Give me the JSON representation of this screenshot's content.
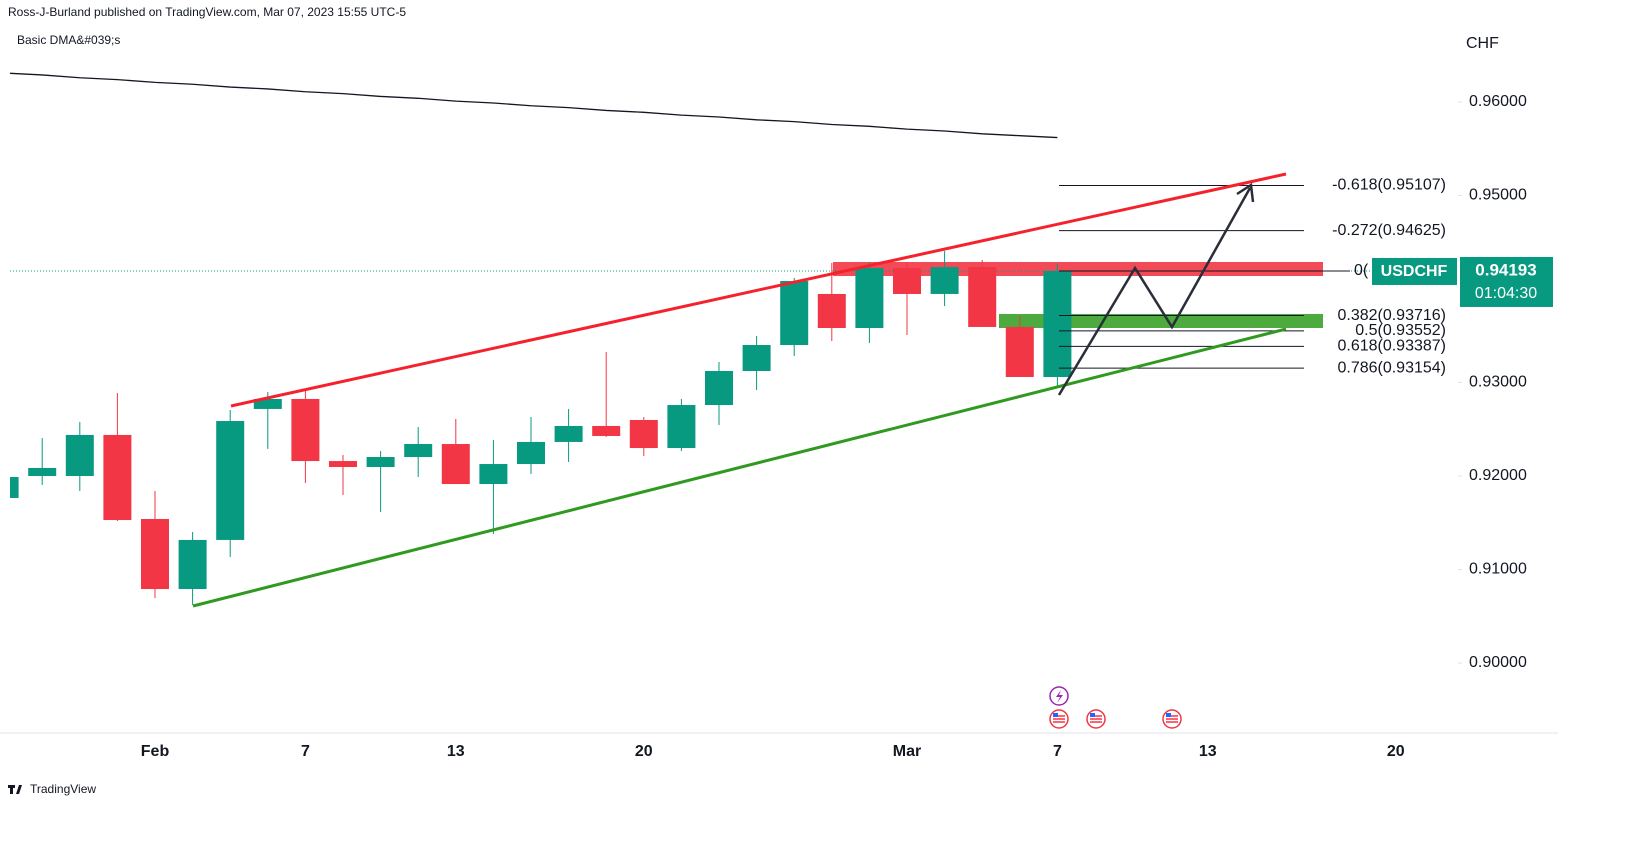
{
  "header": {
    "published": "Ross-J-Burland published on TradingView.com, Mar 07, 2023 15:55 UTC-5"
  },
  "footer": {
    "brand": "TradingView"
  },
  "chart_data": {
    "type": "candlestick",
    "indicator": "Basic DMA&#039;s",
    "currency": "CHF",
    "symbol": "USDCHF",
    "last_price": 0.94193,
    "countdown": "01:04:30",
    "up_color": "#089981",
    "down_color": "#f23645",
    "categories": [
      null,
      null,
      null,
      null,
      "Feb",
      null,
      null,
      null,
      "7",
      null,
      null,
      null,
      "13",
      null,
      null,
      null,
      null,
      "20",
      null,
      null,
      null,
      null,
      null,
      null,
      "Mar",
      null,
      null,
      null,
      "7",
      null,
      null,
      null,
      "13",
      null,
      null,
      null,
      null,
      "20",
      null
    ],
    "open": [
      0.91765,
      0.92,
      0.92,
      0.92439,
      0.9154,
      0.90791,
      0.91316,
      0.92717,
      0.92824,
      0.9216,
      0.92096,
      0.92203,
      0.92342,
      0.91914,
      0.92128,
      0.92364,
      0.92535,
      0.92599,
      0.92299,
      0.92759,
      0.93123,
      0.93401,
      0.93947,
      0.93583,
      0.94225,
      0.93947,
      0.94235,
      0.93594,
      0.93059,
      null,
      null,
      null,
      null,
      null,
      null,
      null,
      null,
      null,
      null
    ],
    "high": [
      0.9199,
      0.92406,
      0.92578,
      0.92888,
      0.9184,
      0.91401,
      0.92706,
      0.92898,
      0.92909,
      0.92225,
      0.92267,
      0.92524,
      0.9261,
      0.92385,
      0.92631,
      0.92717,
      0.93326,
      0.92631,
      0.92824,
      0.93219,
      0.93497,
      0.94118,
      0.94278,
      0.94289,
      0.94289,
      0.94406,
      0.9431,
      0.93711,
      0.94267,
      null,
      null,
      null,
      null,
      null,
      null,
      null,
      null,
      null,
      null
    ],
    "low": [
      0.9176,
      0.91904,
      0.9184,
      0.91519,
      0.90695,
      0.9062,
      0.91134,
      0.92289,
      0.91925,
      0.91797,
      0.91615,
      0.91989,
      0.91914,
      0.9138,
      0.92021,
      0.9215,
      0.92417,
      0.92214,
      0.92267,
      0.92545,
      0.9292,
      0.93283,
      0.93444,
      0.93422,
      0.93508,
      0.93818,
      0.93594,
      0.93059,
      0.92941,
      null,
      null,
      null,
      null,
      null,
      null,
      null,
      null,
      null,
      null
    ],
    "close": [
      0.91989,
      0.92086,
      0.92439,
      0.91529,
      0.90791,
      0.91316,
      0.92588,
      0.92824,
      0.9216,
      0.92096,
      0.92203,
      0.92342,
      0.91914,
      0.92128,
      0.92364,
      0.92535,
      0.92428,
      0.92299,
      0.92759,
      0.93123,
      0.93401,
      0.94086,
      0.93583,
      0.94225,
      0.93947,
      0.94235,
      0.93594,
      0.93059,
      0.94193,
      null,
      null,
      null,
      null,
      null,
      null,
      null,
      null,
      null,
      null
    ],
    "dma": {
      "color": "#131722",
      "values": [
        0.9631,
        0.9629,
        0.9626,
        0.9624,
        0.9621,
        0.9619,
        0.9616,
        0.9614,
        0.9611,
        0.9609,
        0.9606,
        0.9604,
        0.9601,
        0.9599,
        0.9596,
        0.9594,
        0.9591,
        0.9589,
        0.9586,
        0.9584,
        0.9581,
        0.9579,
        0.9576,
        0.9574,
        0.9571,
        0.9569,
        0.9566,
        0.9564,
        0.9562,
        null,
        null,
        null,
        null,
        null,
        null,
        null,
        null,
        null,
        null
      ]
    },
    "ylim": [
      0.89251,
      0.96856
    ],
    "yticks": [
      {
        "value": 0.9,
        "label": "0.90000"
      },
      {
        "value": 0.91,
        "label": "0.91000"
      },
      {
        "value": 0.92,
        "label": "0.92000"
      },
      {
        "value": 0.93,
        "label": "0.93000"
      },
      {
        "value": 0.95,
        "label": "0.95000"
      },
      {
        "value": 0.96,
        "label": "0.96000"
      }
    ],
    "fib_levels": [
      {
        "value": 0.95107,
        "label": "-0.618(0.95107)"
      },
      {
        "value": 0.94625,
        "label": "-0.272(0.94625)"
      },
      {
        "value": 0.94193,
        "label": "0("
      },
      {
        "value": 0.93716,
        "label": "0.382(0.93716)"
      },
      {
        "value": 0.93552,
        "label": "0.5(0.93552)"
      },
      {
        "value": 0.93387,
        "label": "0.618(0.93387)"
      },
      {
        "value": 0.93154,
        "label": "0.786(0.93154)"
      }
    ],
    "zones": [
      {
        "color": "#f23645",
        "top": 0.94289,
        "bottom": 0.94139
      },
      {
        "color": "#3aa12a",
        "top": 0.93733,
        "bottom": 0.93583
      }
    ]
  }
}
